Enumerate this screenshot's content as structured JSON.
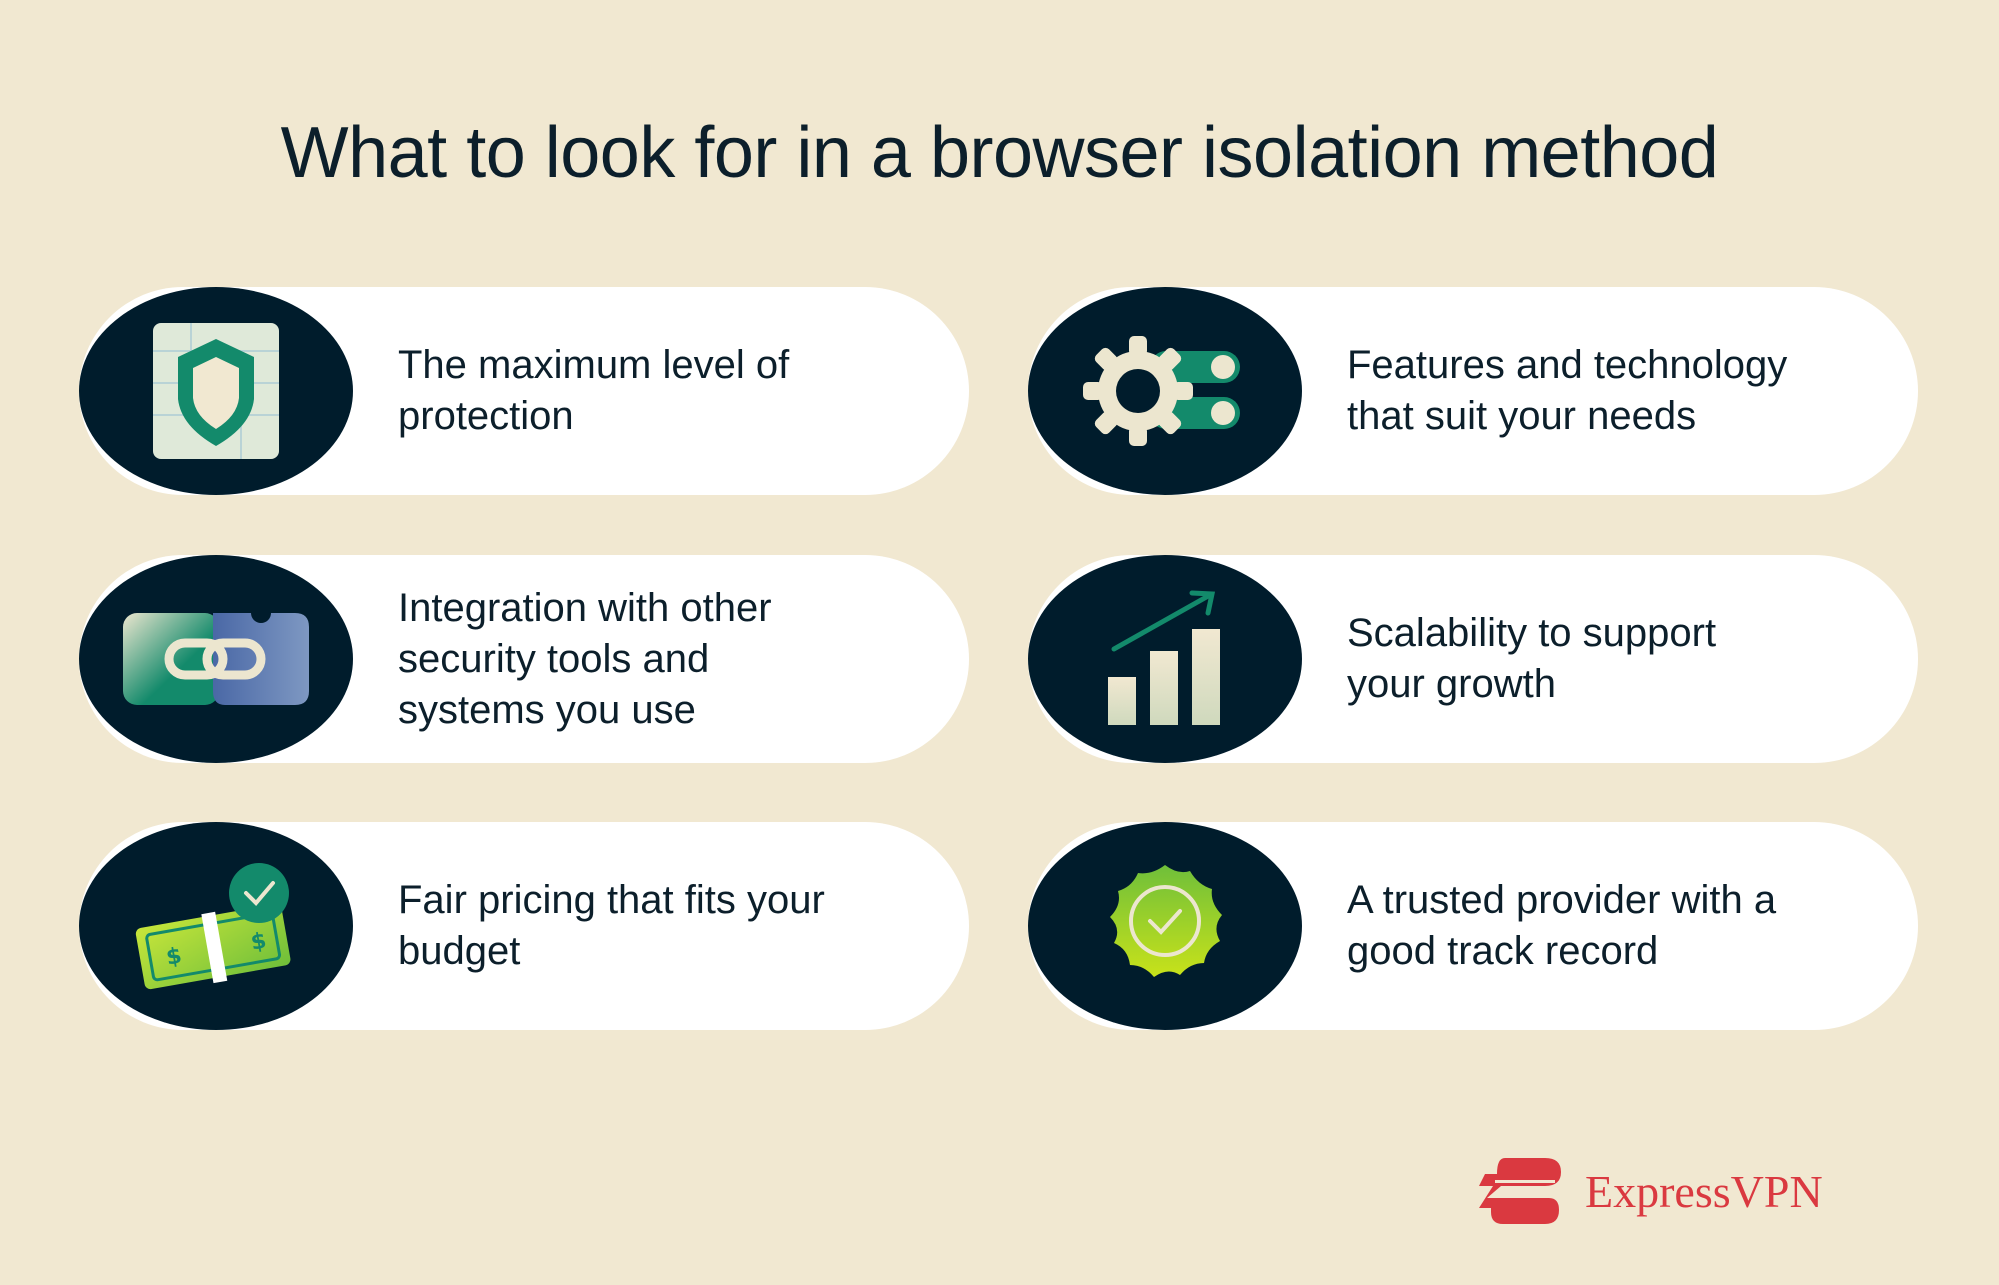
{
  "title": "What to look for in a browser isolation method",
  "items": [
    {
      "text": "The maximum level of protection",
      "icon": "shield-icon"
    },
    {
      "text": "Features and technology that suit your needs",
      "icon": "gear-toggle-icon"
    },
    {
      "text": "Integration with other security tools and systems you use",
      "icon": "link-icon"
    },
    {
      "text": "Scalability to support your growth",
      "icon": "growth-chart-icon"
    },
    {
      "text": "Fair pricing that fits your budget",
      "icon": "money-check-icon"
    },
    {
      "text": "A trusted provider with a good track record",
      "icon": "verified-badge-icon"
    }
  ],
  "brand": {
    "name": "ExpressVPN",
    "color": "#da3940"
  },
  "colors": {
    "background": "#f1e8d1",
    "badge": "#001c2c",
    "accent": "#138a6b"
  }
}
